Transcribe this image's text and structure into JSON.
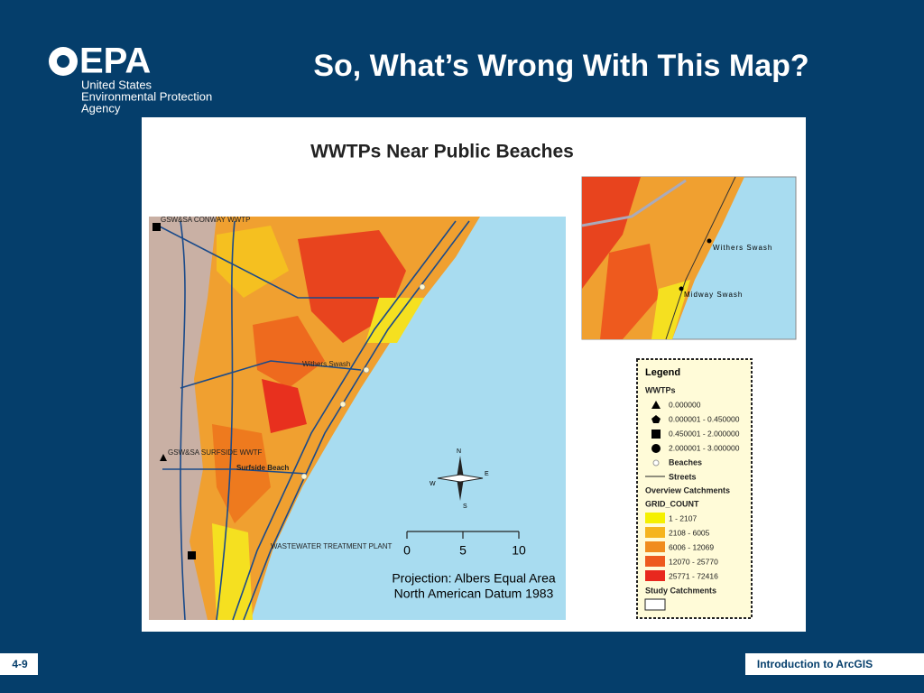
{
  "header": {
    "logo": {
      "wordmark": "EPA",
      "lines": [
        "United States",
        "Environmental Protection",
        "Agency"
      ]
    },
    "title": "So, What’s Wrong With This Map?"
  },
  "map": {
    "title": "WWTPs Near Public Beaches",
    "labels": [
      "GSW&SA CONWAY WWTP",
      "GSW&SA SURFSIDE WWTF",
      "Surfside Beach",
      "WASTEWATER TREATMENT PLANT",
      "Withers Swash"
    ],
    "compass": {
      "n": "N",
      "e": "E",
      "s": "S",
      "w": "W"
    },
    "scale": [
      "0",
      "5",
      "10"
    ],
    "projection": [
      "Projection: Albers Equal Area",
      "North American Datum 1983"
    ],
    "inset": {
      "labels": [
        "Withers Swash",
        "Midway Swash"
      ]
    },
    "legend": {
      "title": "Legend",
      "wwtps": {
        "heading": "WWTPs",
        "items": [
          "0.000000",
          "0.000001 - 0.450000",
          "0.450001 - 2.000000",
          "2.000001 - 3.000000"
        ]
      },
      "beaches": "Beaches",
      "streets": "Streets",
      "overview": "Overview Catchments",
      "grid": {
        "heading": "GRID_COUNT",
        "items": [
          "1 - 2107",
          "2108 - 6005",
          "6006 - 12069",
          "12070 - 25770",
          "25771 - 72416"
        ]
      },
      "study": "Study Catchments"
    }
  },
  "footer": {
    "page": "4-9",
    "course": "Introduction to ArcGIS"
  }
}
